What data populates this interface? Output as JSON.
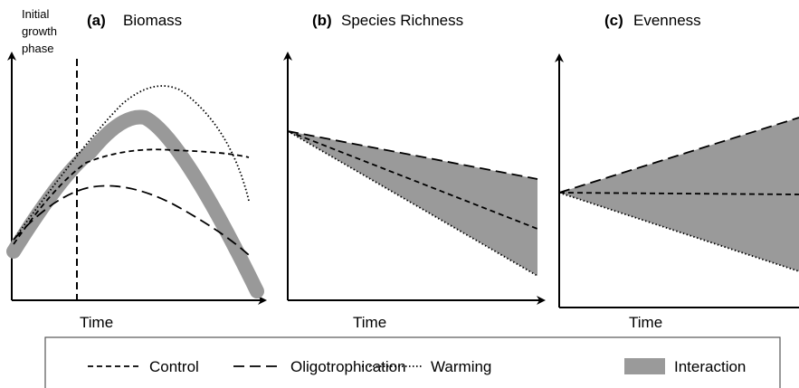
{
  "panels": [
    {
      "label": "(a)",
      "title": "Biomass",
      "x_label": "Time",
      "annotation": {
        "lines": [
          "Initial",
          "growth",
          "phase"
        ]
      }
    },
    {
      "label": "(b)",
      "title": "Species Richness",
      "x_label": "Time"
    },
    {
      "label": "(c)",
      "title": "Evenness",
      "x_label": "Time"
    }
  ],
  "legend": {
    "entries": [
      "Control",
      "Oligotrophication",
      "Warming",
      "Interaction"
    ]
  }
}
